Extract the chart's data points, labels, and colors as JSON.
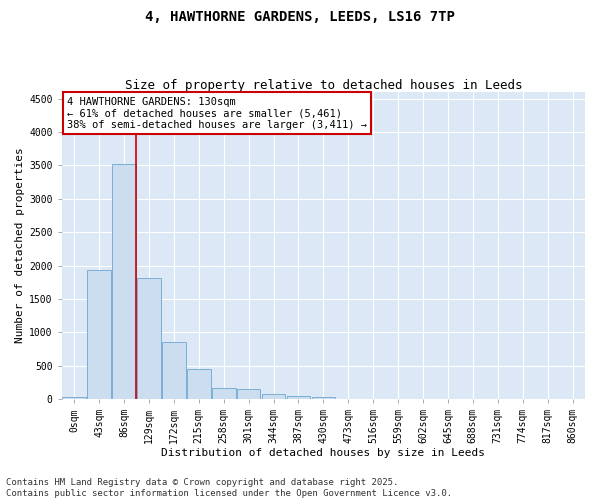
{
  "title_line1": "4, HAWTHORNE GARDENS, LEEDS, LS16 7TP",
  "title_line2": "Size of property relative to detached houses in Leeds",
  "xlabel": "Distribution of detached houses by size in Leeds",
  "ylabel": "Number of detached properties",
  "categories": [
    "0sqm",
    "43sqm",
    "86sqm",
    "129sqm",
    "172sqm",
    "215sqm",
    "258sqm",
    "301sqm",
    "344sqm",
    "387sqm",
    "430sqm",
    "473sqm",
    "516sqm",
    "559sqm",
    "602sqm",
    "645sqm",
    "688sqm",
    "731sqm",
    "774sqm",
    "817sqm",
    "860sqm"
  ],
  "values": [
    30,
    1940,
    3520,
    1810,
    850,
    450,
    170,
    155,
    80,
    45,
    30,
    8,
    0,
    0,
    0,
    0,
    0,
    0,
    0,
    0,
    0
  ],
  "bar_color": "#ccddf0",
  "bar_edge_color": "#7aafd4",
  "vline_color": "#cc0000",
  "annotation_text": "4 HAWTHORNE GARDENS: 130sqm\n← 61% of detached houses are smaller (5,461)\n38% of semi-detached houses are larger (3,411) →",
  "ylim": [
    0,
    4600
  ],
  "yticks": [
    0,
    500,
    1000,
    1500,
    2000,
    2500,
    3000,
    3500,
    4000,
    4500
  ],
  "bg_color": "#dce8f5",
  "footer_line1": "Contains HM Land Registry data © Crown copyright and database right 2025.",
  "footer_line2": "Contains public sector information licensed under the Open Government Licence v3.0.",
  "title_fontsize": 10,
  "subtitle_fontsize": 9,
  "axis_label_fontsize": 8,
  "tick_fontsize": 7,
  "annotation_fontsize": 7.5,
  "footer_fontsize": 6.5
}
